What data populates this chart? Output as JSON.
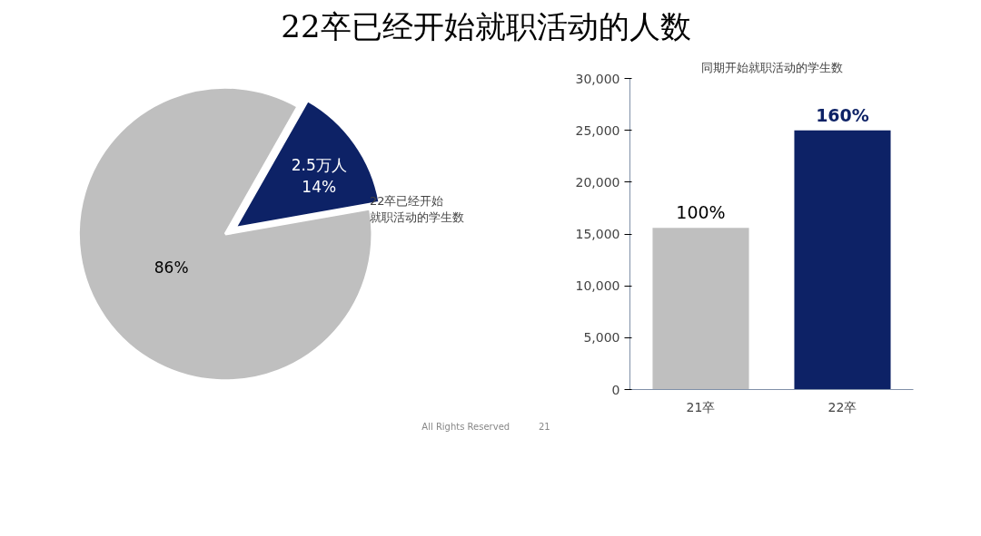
{
  "chart_data": [
    {
      "type": "pie",
      "title": "22卒已经开始就职活动的人数",
      "categories": [
        "22卒已经开始就职活动的学生数",
        null
      ],
      "values": [
        14,
        86
      ],
      "colors": [
        "#0d2266",
        "#bfbfbf"
      ],
      "value_labels": [
        "2.5万人\n14%",
        "86%"
      ],
      "annotations": [
        "All Rights Reserved",
        "21"
      ]
    },
    {
      "type": "bar",
      "title": "同期开始就职活动的学生数",
      "categories": [
        "21卒",
        "22卒"
      ],
      "values": [
        15600,
        25000
      ],
      "colors": [
        "#bfbfbf",
        "#0d2266"
      ],
      "annotations": [
        {
          "text": "100%",
          "x": "21卒",
          "y": 15600
        },
        {
          "text": "160%",
          "x": "22卒",
          "y": 25000
        }
      ],
      "ylim": [
        0,
        30000
      ],
      "yticks": [
        0,
        {
          "value": 5000,
          "label": "5,000"
        },
        {
          "value": 10000,
          "label": "10,000"
        },
        {
          "value": 15000,
          "label": "15,000"
        },
        {
          "value": 20000,
          "label": "20,000"
        },
        {
          "value": 25000,
          "label": "25,000"
        },
        {
          "value": 30000,
          "label": "30,000"
        }
      ],
      "grid": false
    }
  ]
}
